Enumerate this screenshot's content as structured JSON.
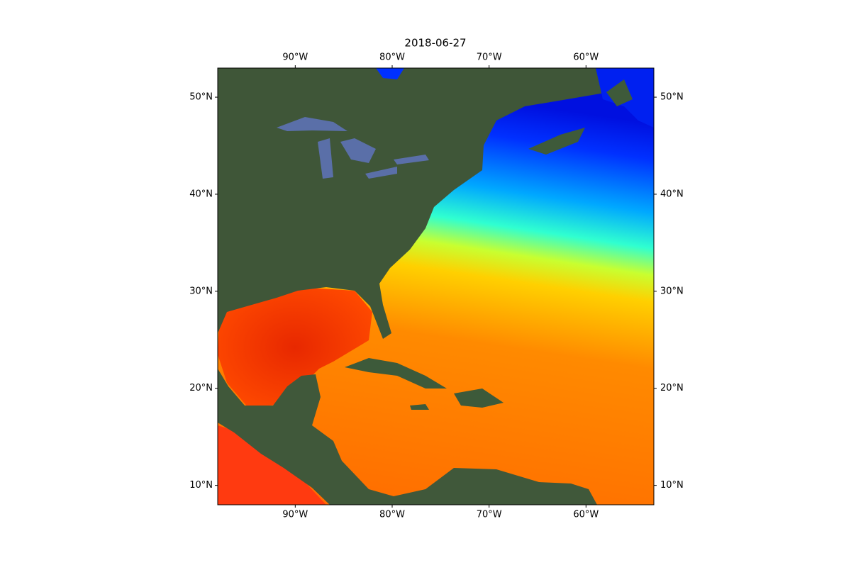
{
  "map": {
    "title": "2018-06-27",
    "xlim": [
      -98,
      -53
    ],
    "ylim": [
      8,
      53
    ],
    "xticks": [
      {
        "value": -90,
        "label": "90°W"
      },
      {
        "value": -80,
        "label": "80°W"
      },
      {
        "value": -70,
        "label": "70°W"
      },
      {
        "value": -60,
        "label": "60°W"
      }
    ],
    "yticks": [
      {
        "value": 10,
        "label": "10°N"
      },
      {
        "value": 20,
        "label": "20°N"
      },
      {
        "value": 30,
        "label": "30°N"
      },
      {
        "value": 40,
        "label": "40°N"
      },
      {
        "value": 50,
        "label": "50°N"
      }
    ]
  }
}
